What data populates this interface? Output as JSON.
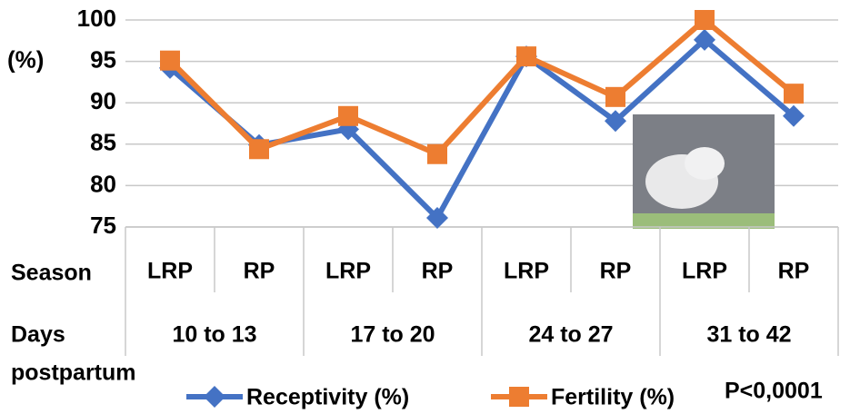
{
  "chart_data": {
    "type": "line",
    "y_label": "(%)",
    "categories": [
      "LRP",
      "RP",
      "LRP",
      "RP",
      "LRP",
      "RP",
      "LRP",
      "RP"
    ],
    "category_row_label": "Season",
    "groups": [
      "10 to 13",
      "17 to 20",
      "24 to 27",
      "31 to 42"
    ],
    "group_row_label": [
      "Days",
      "postpartum"
    ],
    "series": [
      {
        "name": "Receptivity (%)",
        "color": "#4472c4",
        "marker": "diamond",
        "values": [
          94.2,
          84.9,
          86.8,
          76.1,
          95.6,
          87.8,
          97.6,
          88.4
        ]
      },
      {
        "name": "Fertility (%)",
        "color": "#ed7d31",
        "marker": "square",
        "values": [
          95.1,
          84.4,
          88.4,
          83.8,
          95.6,
          90.7,
          100,
          91.1
        ]
      }
    ],
    "ylim": [
      75,
      100
    ],
    "yticks": [
      75,
      80,
      85,
      90,
      95,
      100
    ],
    "grid": true,
    "annotation": "P<0,0001"
  }
}
